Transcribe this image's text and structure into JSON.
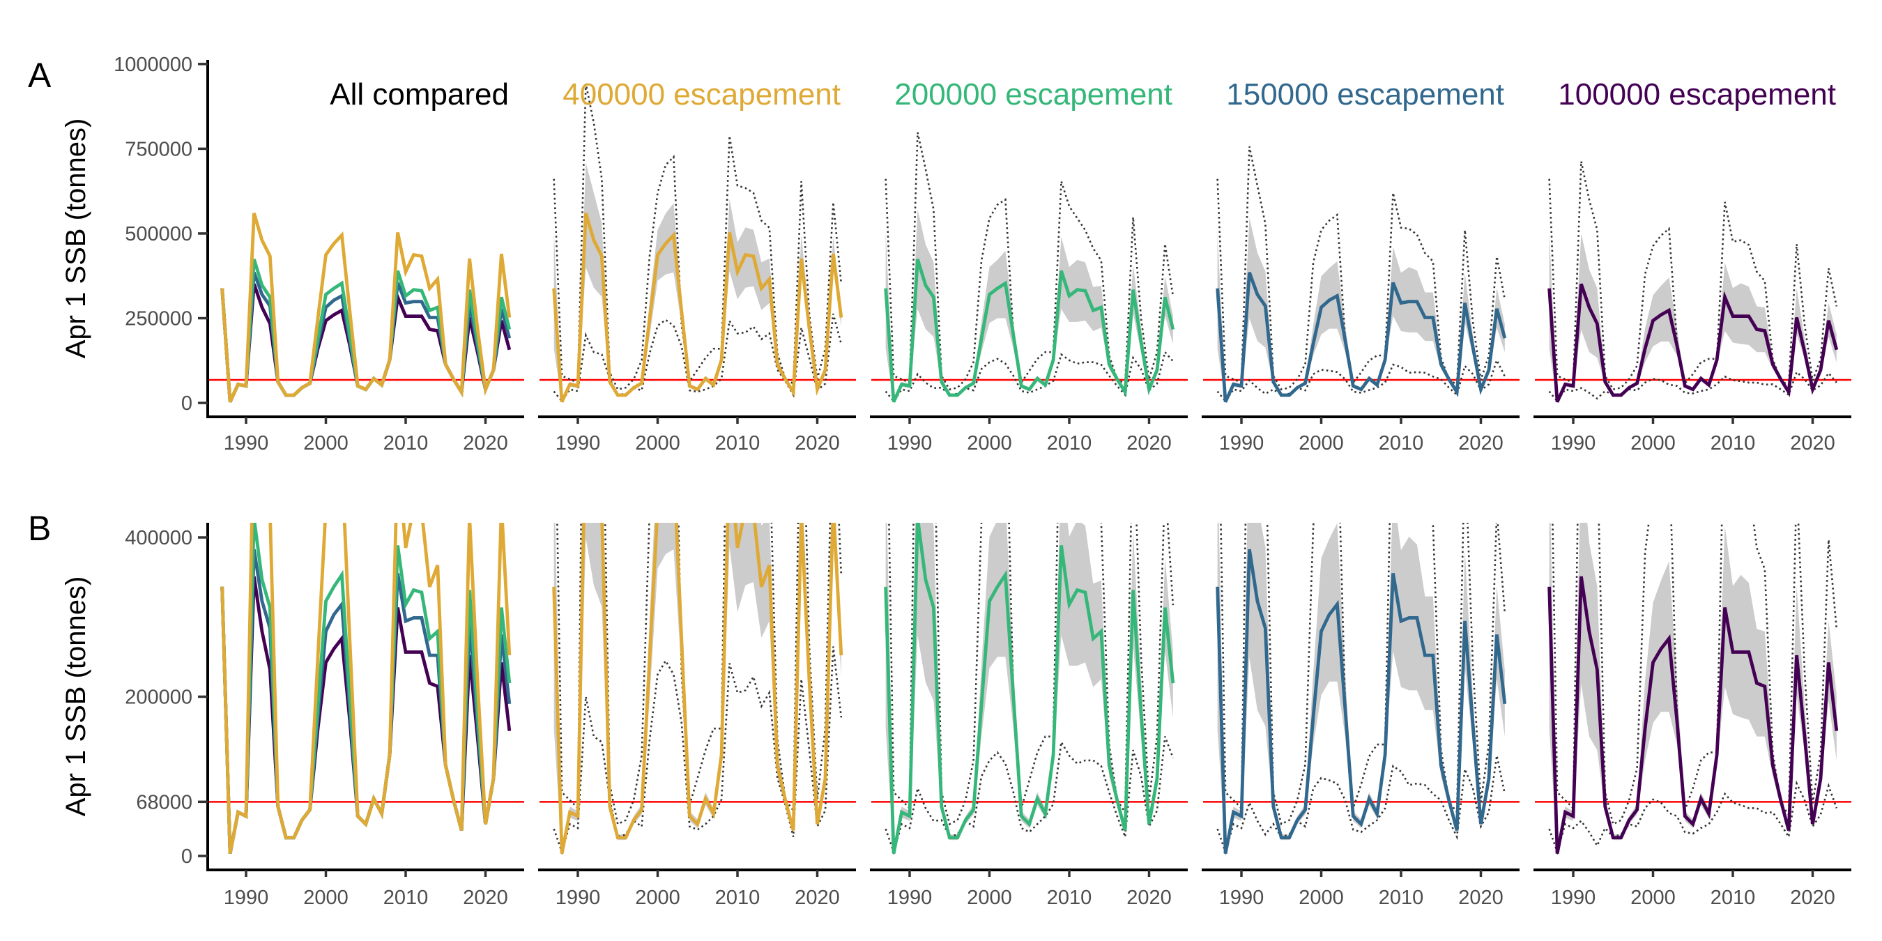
{
  "chart_data": {
    "type": "line",
    "ylabel": "Apr 1 SSB (tonnes)",
    "x": [
      1987,
      1988,
      1989,
      1990,
      1991,
      1992,
      1993,
      1994,
      1995,
      1996,
      1997,
      1998,
      1999,
      2000,
      2001,
      2002,
      2003,
      2004,
      2005,
      2006,
      2007,
      2008,
      2009,
      2010,
      2011,
      2012,
      2013,
      2014,
      2015,
      2016,
      2017,
      2018,
      2019,
      2020,
      2021,
      2022,
      2023
    ],
    "xticks": [
      1990,
      2000,
      2010,
      2020
    ],
    "xtick_labels": [
      "1990",
      "2000",
      "2010",
      "2020"
    ],
    "reference_line": {
      "value": 68000,
      "color": "#FF0000"
    },
    "ribbon_color": "#CCCCCC",
    "dotted_color": "#333333",
    "grid": false,
    "series": [
      {
        "name": "400000 escapement",
        "color": "#DFA935",
        "median": [
          338000,
          3000,
          55000,
          50000,
          560000,
          480000,
          433000,
          62000,
          23000,
          23000,
          45000,
          58000,
          250000,
          437000,
          470000,
          495000,
          270000,
          50000,
          40000,
          72000,
          53000,
          127000,
          503000,
          387000,
          437000,
          433000,
          338000,
          365000,
          114000,
          70000,
          32000,
          426000,
          220000,
          40000,
          97000,
          440000,
          252000
        ],
        "ribbon_low": [
          160000,
          1000,
          48000,
          44000,
          399000,
          340000,
          313000,
          55000,
          20000,
          20000,
          40000,
          52000,
          200000,
          361000,
          379000,
          385000,
          230000,
          44000,
          35000,
          64000,
          47000,
          115000,
          389000,
          306000,
          340000,
          344000,
          274000,
          295000,
          100000,
          62000,
          28000,
          399000,
          190000,
          35000,
          86000,
          399000,
          225000
        ],
        "ribbon_high": [
          503000,
          10000,
          62000,
          56000,
          709000,
          620000,
          531000,
          70000,
          27000,
          27000,
          50000,
          65000,
          300000,
          511000,
          559000,
          589000,
          300000,
          56000,
          46000,
          80000,
          60000,
          140000,
          602000,
          474000,
          518000,
          511000,
          415000,
          426000,
          130000,
          78000,
          36000,
          498000,
          250000,
          46000,
          108000,
          491000,
          270000
        ],
        "dotted_low": [
          34000,
          5000,
          40000,
          35000,
          200000,
          150000,
          143000,
          71000,
          24000,
          27000,
          44000,
          37000,
          147000,
          228000,
          245000,
          228000,
          167000,
          37000,
          33000,
          40000,
          50000,
          71000,
          242000,
          205000,
          208000,
          225000,
          188000,
          205000,
          98000,
          64000,
          24000,
          222000,
          133000,
          37000,
          57000,
          263000,
          174000
        ],
        "dotted_high": [
          661000,
          80000,
          70000,
          60000,
          942000,
          826000,
          661000,
          90000,
          40000,
          45000,
          70000,
          126000,
          435000,
          620000,
          702000,
          726000,
          228000,
          64000,
          98000,
          133000,
          160000,
          160000,
          788000,
          641000,
          634000,
          620000,
          538000,
          517000,
          147000,
          71000,
          57000,
          654000,
          263000,
          71000,
          160000,
          592000,
          352000
        ]
      },
      {
        "name": "200000 escapement",
        "color": "#35B779",
        "median": [
          338000,
          3000,
          55000,
          50000,
          424000,
          347000,
          312000,
          62000,
          23000,
          23000,
          45000,
          58000,
          190000,
          320000,
          338000,
          353000,
          200000,
          50000,
          40000,
          72000,
          53000,
          127000,
          390000,
          316000,
          334000,
          331000,
          273000,
          282000,
          114000,
          70000,
          32000,
          334000,
          180000,
          40000,
          97000,
          312000,
          217000
        ],
        "ribbon_low": [
          160000,
          1000,
          48000,
          44000,
          277000,
          218000,
          195000,
          55000,
          20000,
          20000,
          40000,
          52000,
          150000,
          236000,
          250000,
          250000,
          160000,
          44000,
          35000,
          64000,
          47000,
          115000,
          277000,
          239000,
          239000,
          243000,
          212000,
          222000,
          100000,
          62000,
          28000,
          264000,
          150000,
          35000,
          86000,
          257000,
          174000
        ],
        "ribbon_high": [
          503000,
          10000,
          62000,
          56000,
          571000,
          468000,
          415000,
          70000,
          27000,
          27000,
          50000,
          65000,
          240000,
          401000,
          422000,
          449000,
          240000,
          56000,
          46000,
          80000,
          60000,
          140000,
          490000,
          401000,
          422000,
          415000,
          342000,
          346000,
          130000,
          78000,
          36000,
          408000,
          220000,
          46000,
          108000,
          374000,
          257000
        ],
        "dotted_low": [
          34000,
          5000,
          40000,
          35000,
          85000,
          60000,
          44000,
          45000,
          24000,
          27000,
          44000,
          37000,
          100000,
          120000,
          130000,
          116000,
          80000,
          35000,
          30000,
          40000,
          50000,
          65000,
          143000,
          126000,
          116000,
          120000,
          120000,
          113000,
          80000,
          50000,
          24000,
          133000,
          100000,
          37000,
          57000,
          150000,
          123000
        ],
        "dotted_high": [
          661000,
          80000,
          70000,
          60000,
          798000,
          690000,
          571000,
          80000,
          40000,
          45000,
          70000,
          120000,
          420000,
          545000,
          585000,
          600000,
          200000,
          60000,
          95000,
          130000,
          150000,
          150000,
          654000,
          580000,
          545000,
          510000,
          456000,
          420000,
          140000,
          70000,
          55000,
          548000,
          250000,
          70000,
          150000,
          469000,
          315000
        ]
      },
      {
        "name": "150000 escapement",
        "color": "#31688E",
        "median": [
          338000,
          3000,
          55000,
          50000,
          385000,
          320000,
          286000,
          62000,
          23000,
          23000,
          45000,
          58000,
          175000,
          282000,
          303000,
          316000,
          185000,
          50000,
          40000,
          72000,
          53000,
          127000,
          355000,
          295000,
          299000,
          299000,
          252000,
          252000,
          114000,
          70000,
          32000,
          295000,
          165000,
          40000,
          97000,
          278000,
          191000
        ],
        "ribbon_low": [
          160000,
          1000,
          48000,
          44000,
          249000,
          183000,
          163000,
          55000,
          20000,
          20000,
          40000,
          52000,
          140000,
          202000,
          219000,
          219000,
          150000,
          44000,
          35000,
          64000,
          47000,
          115000,
          257000,
          212000,
          208000,
          208000,
          183000,
          183000,
          100000,
          62000,
          28000,
          236000,
          140000,
          35000,
          86000,
          222000,
          150000
        ],
        "ribbon_high": [
          503000,
          10000,
          62000,
          56000,
          546000,
          443000,
          388000,
          70000,
          27000,
          27000,
          50000,
          65000,
          230000,
          374000,
          398000,
          418000,
          230000,
          56000,
          46000,
          80000,
          60000,
          140000,
          460000,
          384000,
          401000,
          391000,
          326000,
          326000,
          130000,
          78000,
          36000,
          384000,
          200000,
          46000,
          108000,
          339000,
          233000
        ],
        "dotted_low": [
          34000,
          5000,
          40000,
          35000,
          67000,
          44000,
          27000,
          40000,
          24000,
          27000,
          44000,
          37000,
          85000,
          98000,
          95000,
          91000,
          70000,
          33000,
          30000,
          38000,
          45000,
          60000,
          113000,
          106000,
          89000,
          91000,
          89000,
          78000,
          70000,
          45000,
          24000,
          109000,
          85000,
          37000,
          55000,
          126000,
          78000
        ],
        "dotted_high": [
          661000,
          80000,
          70000,
          60000,
          757000,
          641000,
          528000,
          80000,
          40000,
          45000,
          70000,
          115000,
          414000,
          510000,
          538000,
          555000,
          190000,
          60000,
          90000,
          125000,
          140000,
          140000,
          620000,
          517000,
          514000,
          497000,
          442000,
          418000,
          135000,
          68000,
          55000,
          510000,
          240000,
          68000,
          140000,
          432000,
          305000
        ]
      },
      {
        "name": "100000 escapement",
        "color": "#440154",
        "median": [
          338000,
          3000,
          55000,
          50000,
          351000,
          282000,
          234000,
          62000,
          23000,
          23000,
          45000,
          58000,
          160000,
          243000,
          260000,
          273000,
          170000,
          50000,
          40000,
          72000,
          53000,
          127000,
          312000,
          256000,
          256000,
          256000,
          217000,
          213000,
          114000,
          70000,
          32000,
          252000,
          150000,
          40000,
          97000,
          243000,
          157000
        ],
        "ribbon_low": [
          160000,
          1000,
          48000,
          44000,
          216000,
          150000,
          133000,
          55000,
          20000,
          20000,
          40000,
          52000,
          120000,
          167000,
          181000,
          181000,
          140000,
          44000,
          35000,
          64000,
          47000,
          115000,
          212000,
          178000,
          174000,
          171000,
          150000,
          150000,
          100000,
          62000,
          28000,
          202000,
          130000,
          35000,
          86000,
          195000,
          120000
        ],
        "ribbon_high": [
          503000,
          10000,
          62000,
          56000,
          500000,
          394000,
          339000,
          70000,
          27000,
          27000,
          50000,
          65000,
          220000,
          318000,
          346000,
          370000,
          220000,
          56000,
          46000,
          80000,
          60000,
          140000,
          414000,
          339000,
          353000,
          343000,
          285000,
          282000,
          130000,
          78000,
          36000,
          339000,
          190000,
          46000,
          108000,
          295000,
          202000
        ],
        "dotted_low": [
          34000,
          5000,
          40000,
          35000,
          44000,
          30000,
          13000,
          35000,
          24000,
          27000,
          40000,
          37000,
          60000,
          71000,
          67000,
          54000,
          50000,
          30000,
          28000,
          35000,
          40000,
          55000,
          78000,
          67000,
          64000,
          60000,
          60000,
          54000,
          55000,
          40000,
          24000,
          91000,
          70000,
          37000,
          52000,
          88000,
          60000
        ],
        "dotted_high": [
          661000,
          80000,
          70000,
          60000,
          713000,
          600000,
          511000,
          80000,
          40000,
          45000,
          70000,
          110000,
          380000,
          463000,
          494000,
          514000,
          180000,
          58000,
          85000,
          120000,
          130000,
          130000,
          593000,
          476000,
          480000,
          466000,
          387000,
          360000,
          130000,
          66000,
          52000,
          469000,
          230000,
          66000,
          130000,
          397000,
          285000
        ]
      }
    ],
    "facets": [
      {
        "title": "All compared",
        "title_color": "#000000",
        "series": [
          3,
          2,
          1,
          0
        ]
      },
      {
        "title": "400000 escapement",
        "title_color": "#DFA935",
        "series": [
          0
        ]
      },
      {
        "title": "200000 escapement",
        "title_color": "#35B779",
        "series": [
          1
        ]
      },
      {
        "title": "150000 escapement",
        "title_color": "#31688E",
        "series": [
          2
        ]
      },
      {
        "title": "100000 escapement",
        "title_color": "#440154",
        "series": [
          3
        ]
      }
    ],
    "panels": [
      {
        "label": "A",
        "ylim": [
          -41000,
          1012000
        ],
        "yticks": [
          0,
          250000,
          500000,
          750000,
          1000000
        ],
        "ytick_labels": [
          "0",
          "250000",
          "500000",
          "750000",
          "1000000"
        ]
      },
      {
        "label": "B",
        "ylim": [
          -17500,
          418400
        ],
        "yticks": [
          0,
          68000,
          200000,
          400000
        ],
        "ytick_labels": [
          "0",
          "68000",
          "200000",
          "400000"
        ]
      }
    ]
  }
}
